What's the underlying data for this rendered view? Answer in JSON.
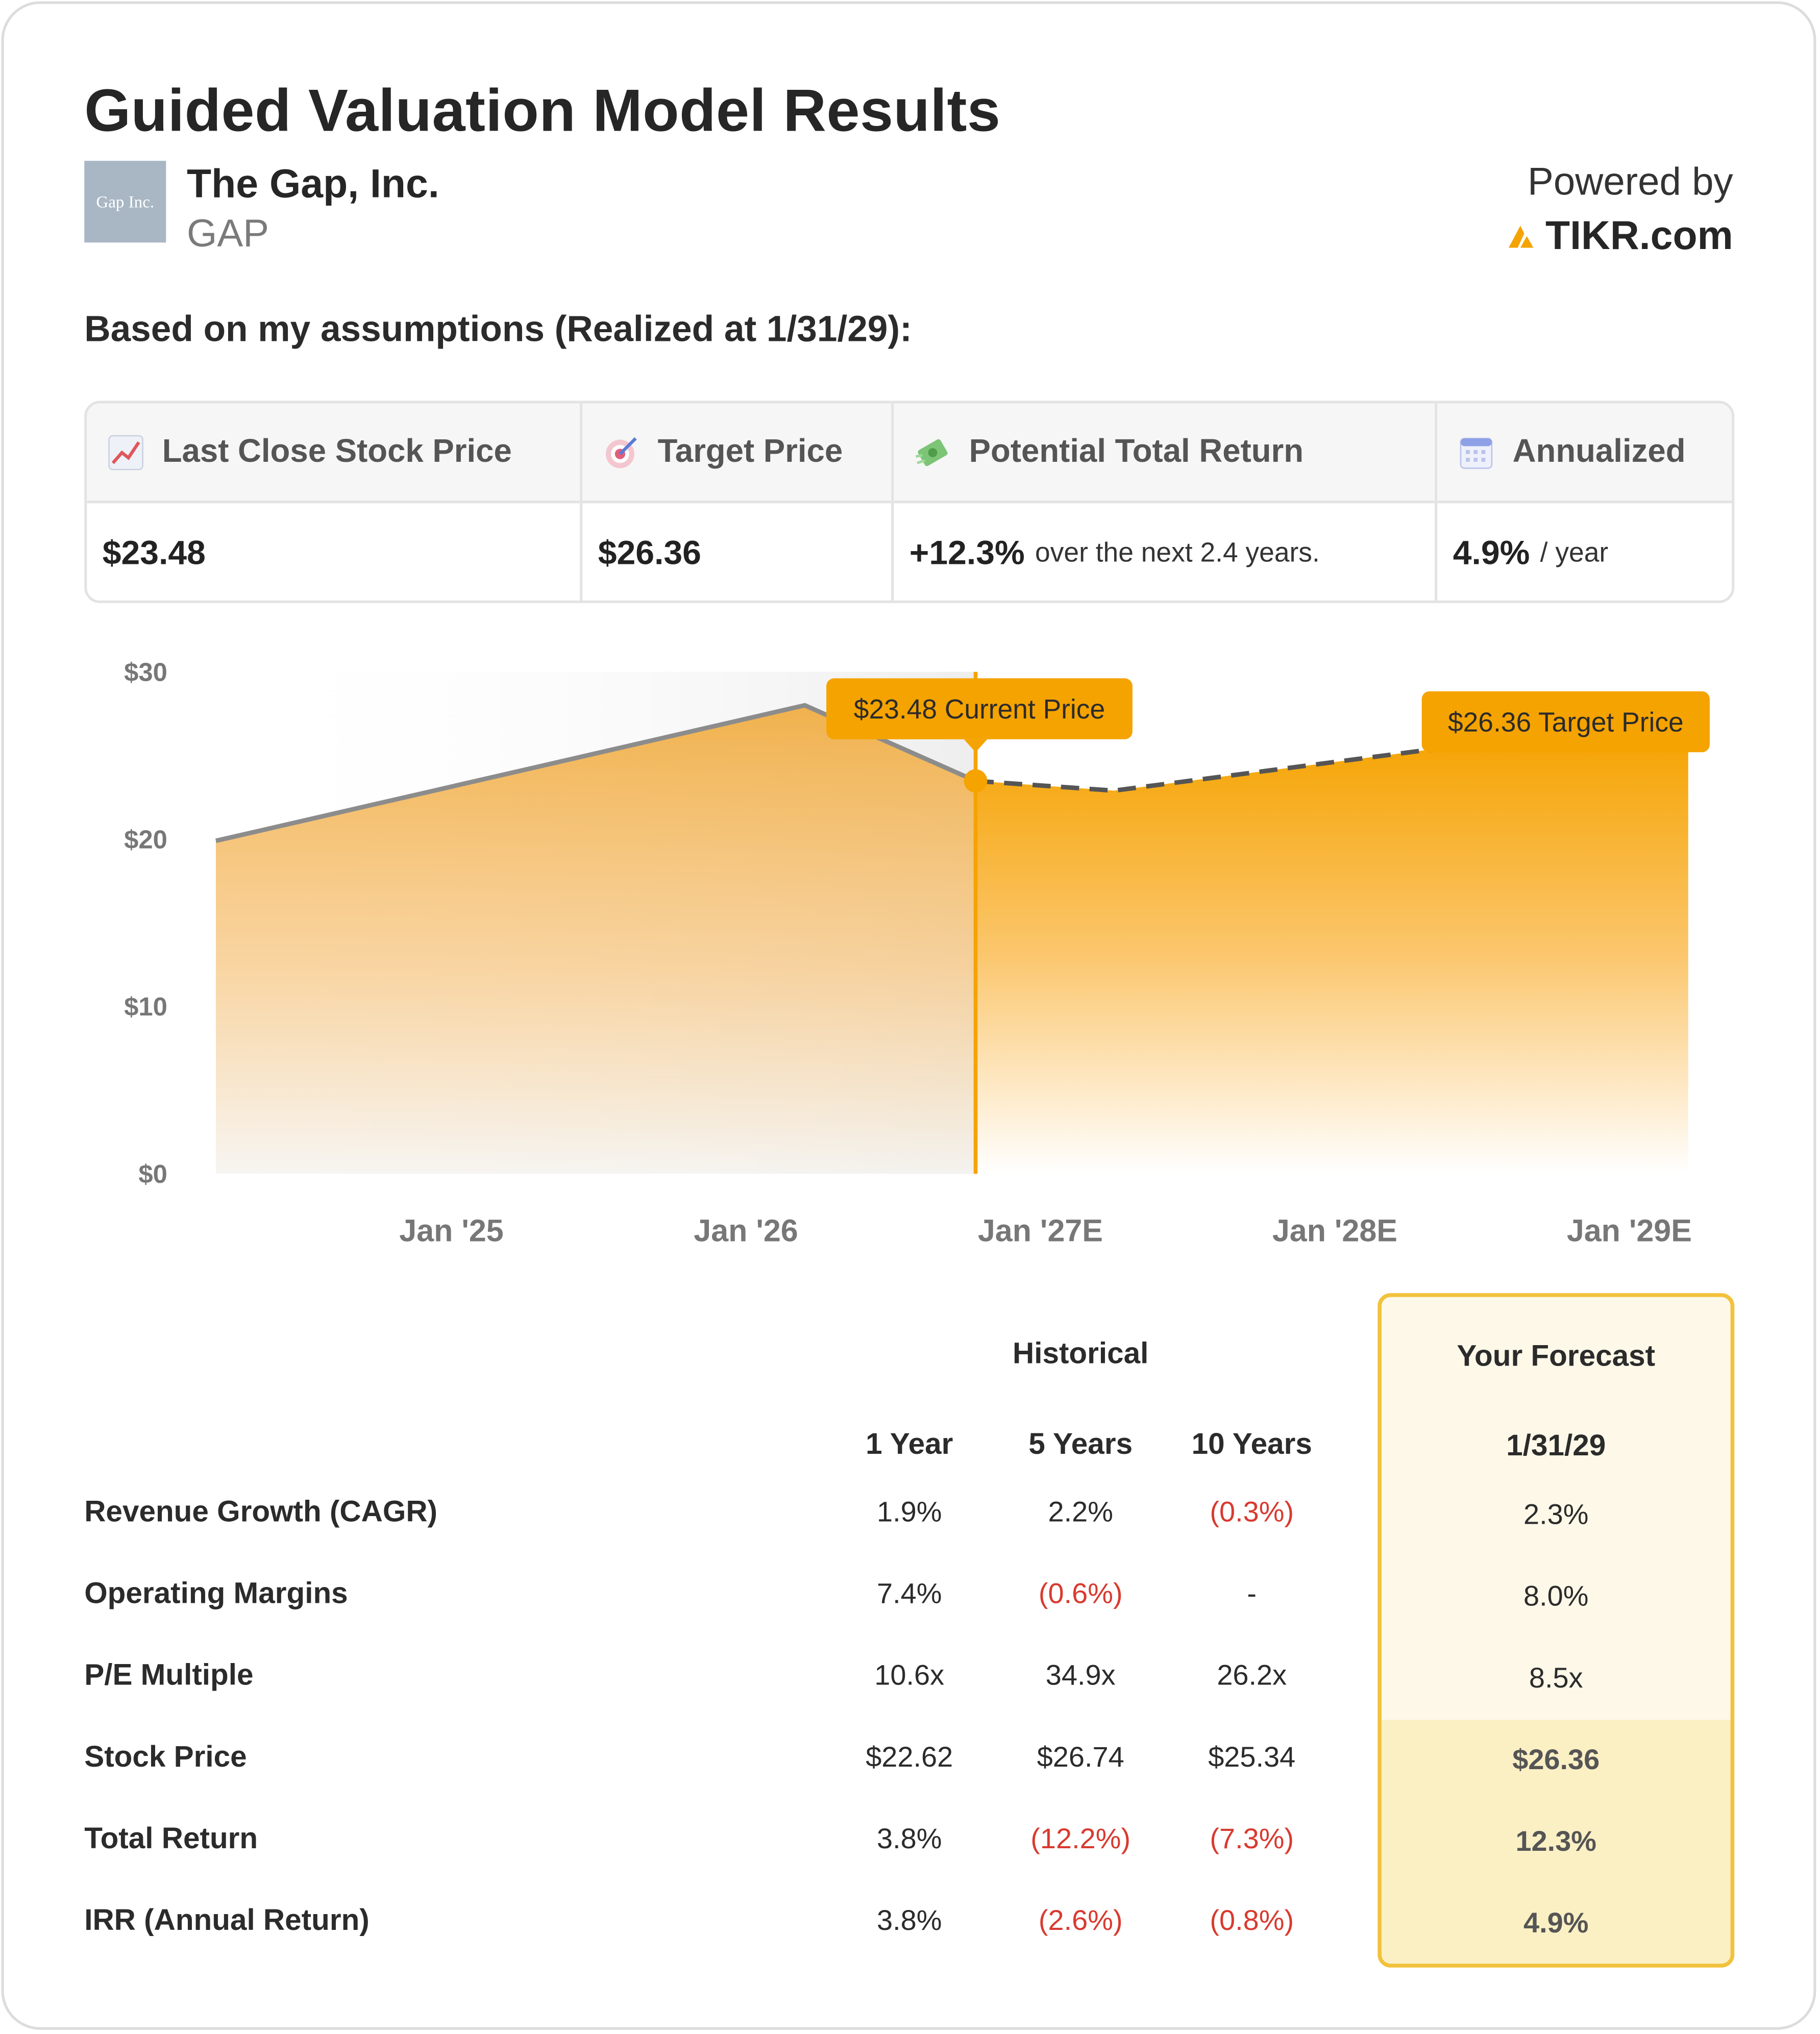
{
  "header": {
    "title": "Guided Valuation Model Results",
    "logo_text": "Gap Inc.",
    "company": "The Gap, Inc.",
    "ticker": "GAP",
    "powered_by": "Powered by",
    "brand": "TIKR.com"
  },
  "assumption_text": "Based on my assumptions (Realized at 1/31/29):",
  "kpis": {
    "last_close_label": "Last Close Stock Price",
    "last_close_value": "$23.48",
    "target_label": "Target Price",
    "target_value": "$26.36",
    "return_label": "Potential Total Return",
    "return_value": "+12.3%",
    "return_sub": "over the next 2.4 years.",
    "annualized_label": "Annualized",
    "annualized_value": "4.9%",
    "annualized_sub": "/ year"
  },
  "colors": {
    "accent": "#f5a300",
    "negative": "#d93a2f",
    "historical_line": "#8c8c8c"
  },
  "chart_data": {
    "type": "area",
    "y_ticks": [
      "$0",
      "$10",
      "$20",
      "$30"
    ],
    "ylim": [
      0,
      30
    ],
    "x_ticks": [
      {
        "label": "Jan '25",
        "t": 2025.0
      },
      {
        "label": "Jan '26",
        "t": 2026.0
      },
      {
        "label": "Jan '27E",
        "t": 2027.0
      },
      {
        "label": "Jan '28E",
        "t": 2028.0
      },
      {
        "label": "Jan '29E",
        "t": 2029.0
      }
    ],
    "series": [
      {
        "points": [
          [
            2024.2,
            19.9
          ],
          [
            2026.2,
            28.0
          ],
          [
            2026.78,
            23.48
          ]
        ]
      },
      {
        "points": [
          [
            2026.78,
            23.48
          ],
          [
            2027.25,
            22.9
          ],
          [
            2028.3,
            25.3
          ],
          [
            2029.2,
            26.36
          ]
        ]
      }
    ],
    "annotations": {
      "current_label": "$23.48 Current Price",
      "current_t": 2026.78,
      "current_value": 23.48,
      "target_label": "$26.36 Target Price",
      "target_value": 26.36
    }
  },
  "table": {
    "historical_label": "Historical",
    "forecast_label": "Your Forecast",
    "forecast_date": "1/31/29",
    "columns": [
      "1 Year",
      "5 Years",
      "10 Years"
    ],
    "rows": [
      {
        "label": "Revenue Growth (CAGR)",
        "hist": [
          "1.9%",
          "2.2%",
          "(0.3%)"
        ],
        "forecast": "2.3%"
      },
      {
        "label": "Operating Margins",
        "hist": [
          "7.4%",
          "(0.6%)",
          "-"
        ],
        "forecast": "8.0%"
      },
      {
        "label": "P/E Multiple",
        "hist": [
          "10.6x",
          "34.9x",
          "26.2x"
        ],
        "forecast": "8.5x"
      },
      {
        "label": "Stock Price",
        "hist": [
          "$22.62",
          "$26.74",
          "$25.34"
        ],
        "forecast": "$26.36"
      },
      {
        "label": "Total Return",
        "hist": [
          "3.8%",
          "(12.2%)",
          "(7.3%)"
        ],
        "forecast": "12.3%"
      },
      {
        "label": "IRR (Annual Return)",
        "hist": [
          "3.8%",
          "(2.6%)",
          "(0.8%)"
        ],
        "forecast": "4.9%"
      }
    ]
  }
}
